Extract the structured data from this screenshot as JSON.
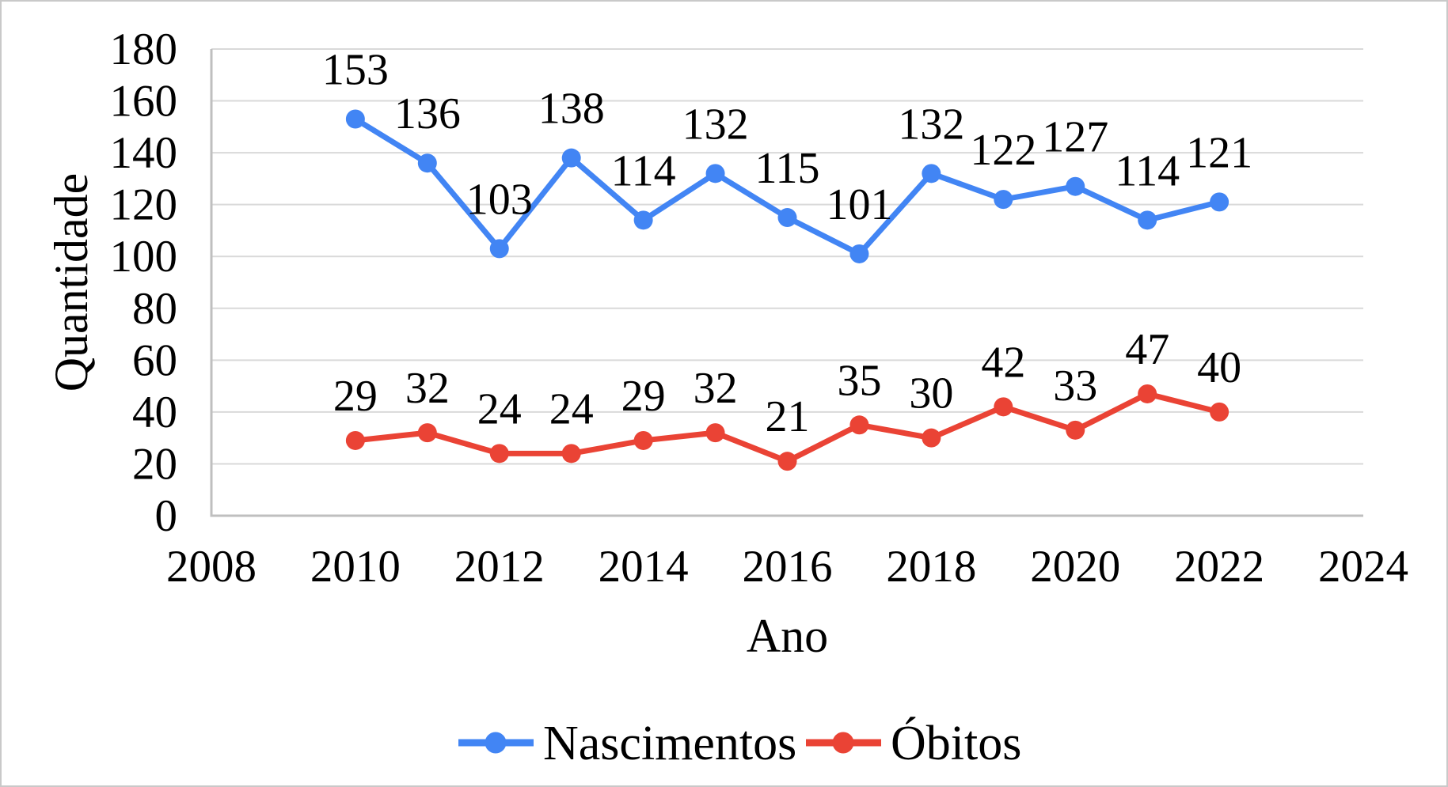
{
  "figure": {
    "background": "#ffffff",
    "border_color": "#c9c9c9"
  },
  "chart_data": {
    "type": "line",
    "title": "",
    "xlabel": "Ano",
    "ylabel": "Quantidade",
    "xlim": [
      2008,
      2024
    ],
    "ylim": [
      0,
      180
    ],
    "x_ticks": [
      2008,
      2010,
      2012,
      2014,
      2016,
      2018,
      2020,
      2022,
      2024
    ],
    "y_ticks": [
      0,
      20,
      40,
      60,
      80,
      100,
      120,
      140,
      160,
      180
    ],
    "grid": true,
    "legend_position": "bottom",
    "x": [
      2010,
      2011,
      2012,
      2013,
      2014,
      2015,
      2016,
      2017,
      2018,
      2019,
      2020,
      2021,
      2022
    ],
    "series": [
      {
        "name": "Nascimentos",
        "color": "#4285F4",
        "values": [
          153,
          136,
          103,
          138,
          114,
          132,
          115,
          101,
          132,
          122,
          127,
          114,
          121
        ]
      },
      {
        "name": "Óbitos",
        "color": "#EA4335",
        "values": [
          29,
          32,
          24,
          24,
          29,
          32,
          21,
          35,
          30,
          42,
          33,
          47,
          40
        ]
      }
    ],
    "colors": {
      "gridline": "#d9d9d9",
      "axis_line": "#bfbfbf",
      "text": "#000000"
    }
  }
}
